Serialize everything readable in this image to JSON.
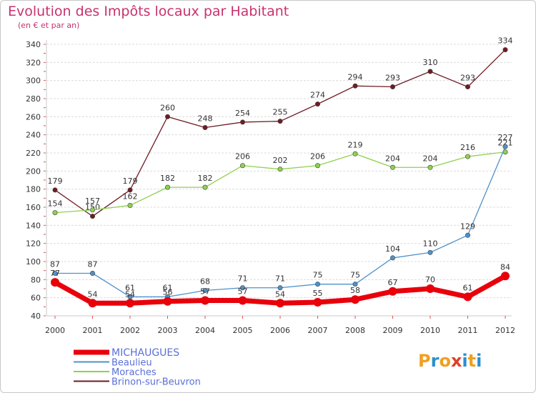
{
  "chart_data": {
    "type": "line",
    "title": "Evolution des Impôts locaux par Habitant",
    "subtitle": "(en € et par an)",
    "xlabel": "",
    "ylabel": "",
    "categories": [
      "2000",
      "2001",
      "2002",
      "2003",
      "2004",
      "2005",
      "2006",
      "2007",
      "2008",
      "2009",
      "2010",
      "2011",
      "2012"
    ],
    "ylim": [
      40,
      340
    ],
    "yticks": [
      40,
      60,
      80,
      100,
      120,
      140,
      160,
      180,
      200,
      220,
      240,
      260,
      280,
      300,
      320,
      340
    ],
    "grid": true,
    "legend_position": "bottom-left",
    "series": [
      {
        "name": "MICHAUGUES",
        "color": "#e8000b",
        "values": [
          77,
          54,
          54,
          56,
          57,
          57,
          54,
          55,
          58,
          67,
          70,
          61,
          84
        ],
        "labels": [
          "77",
          "54",
          "54",
          "56",
          "57",
          "57",
          "54",
          "55",
          "58",
          "67",
          "70",
          "61",
          "84"
        ]
      },
      {
        "name": "Beaulieu",
        "color": "#4f91c9",
        "values": [
          87,
          87,
          61,
          61,
          68,
          71,
          71,
          75,
          75,
          104,
          110,
          129,
          227
        ],
        "labels": [
          "87",
          "87",
          "61",
          "61",
          "68",
          "71",
          "71",
          "75",
          "75",
          "104",
          "110",
          "129",
          "227"
        ]
      },
      {
        "name": "Moraches",
        "color": "#8fd14f",
        "values": [
          154,
          157,
          162,
          182,
          182,
          206,
          202,
          206,
          219,
          204,
          204,
          216,
          221
        ],
        "labels": [
          "154",
          "157",
          "162",
          "182",
          "182",
          "206",
          "202",
          "206",
          "219",
          "204",
          "204",
          "216",
          "221"
        ]
      },
      {
        "name": "Brinon-sur-Beuvron",
        "color": "#6e1c23",
        "values": [
          179,
          150,
          179,
          260,
          248,
          254,
          255,
          274,
          294,
          293,
          310,
          293,
          334
        ],
        "labels": [
          "179",
          "150",
          "179",
          "260",
          "248",
          "254",
          "255",
          "274",
          "294",
          "293",
          "310",
          "293",
          "334"
        ]
      }
    ]
  },
  "logo": {
    "text": "Proxiti",
    "letters": [
      "P",
      "r",
      "o",
      "x",
      "i",
      "t",
      "i"
    ],
    "colors": [
      "#f0a020",
      "#2a8fd0",
      "#f0a020",
      "#e0402a",
      "#2a8fd0",
      "#f0a020",
      "#2a8fd0"
    ]
  }
}
